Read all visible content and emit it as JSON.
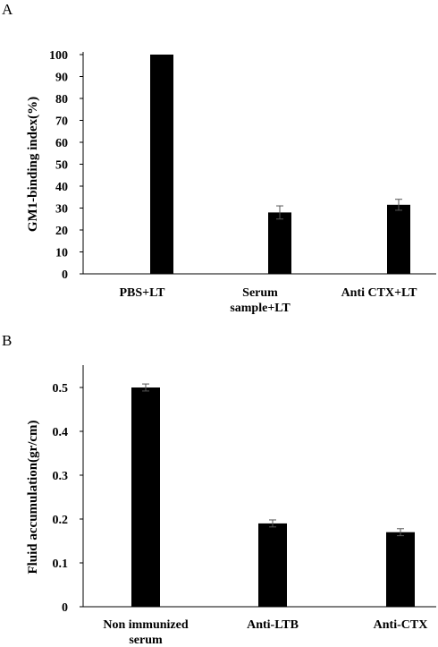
{
  "chart_data": [
    {
      "panel": "A",
      "type": "bar",
      "title": "",
      "xlabel": "",
      "ylabel": "GM1-binding index(%)",
      "ylim": [
        0,
        100
      ],
      "yticks": [
        0,
        10,
        20,
        30,
        40,
        50,
        60,
        70,
        80,
        90,
        100
      ],
      "categories": [
        [
          "PBS+LT"
        ],
        [
          "Serum",
          "sample+LT"
        ],
        [
          "Anti CTX+LT"
        ]
      ],
      "values": [
        100,
        28,
        31.5
      ],
      "errors": [
        0,
        3,
        2.5
      ],
      "grid": false,
      "bar_color": "#000000"
    },
    {
      "panel": "B",
      "type": "bar",
      "title": "",
      "xlabel": "",
      "ylabel": "Fluid accumulation(gr/cm)",
      "ylim": [
        0,
        0.5
      ],
      "yticks": [
        "0",
        "0.1",
        "0.2",
        "0.3",
        "0.4",
        "0.5"
      ],
      "categories": [
        [
          "Non immunized",
          "serum"
        ],
        [
          "Anti-LTB"
        ],
        [
          "Anti-CTX"
        ]
      ],
      "values": [
        0.5,
        0.19,
        0.17
      ],
      "errors": [
        0.008,
        0.008,
        0.008
      ],
      "grid": false,
      "bar_color": "#000000"
    }
  ]
}
